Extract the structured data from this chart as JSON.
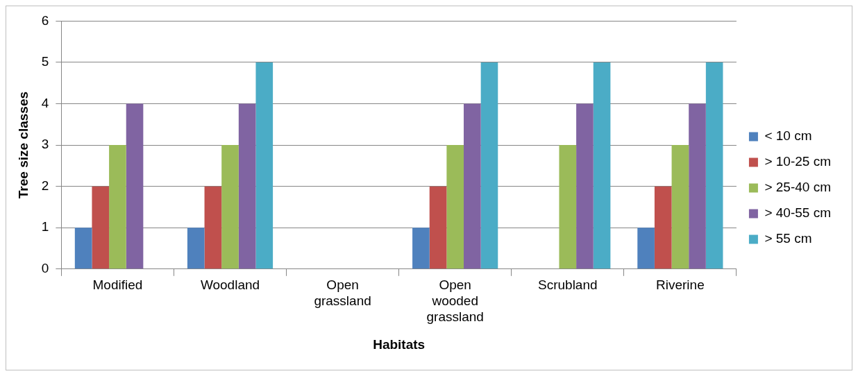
{
  "chart_data": {
    "type": "bar",
    "xlabel": "Habitats",
    "ylabel": "Tree size classes",
    "categories": [
      "Modified",
      "Woodland",
      "Open grassland",
      "Open wooded grassland",
      "Scrubland",
      "Riverine"
    ],
    "series": [
      {
        "name": "< 10 cm",
        "color": "#4f81bd",
        "values": [
          1,
          1,
          0,
          1,
          0,
          1
        ]
      },
      {
        "name": "> 10-25 cm",
        "color": "#c0504d",
        "values": [
          2,
          2,
          0,
          2,
          0,
          2
        ]
      },
      {
        "name": "> 25-40 cm",
        "color": "#9bbb59",
        "values": [
          3,
          3,
          0,
          3,
          3,
          3
        ]
      },
      {
        "name": "> 40-55 cm",
        "color": "#8064a2",
        "values": [
          4,
          4,
          0,
          4,
          4,
          4
        ]
      },
      {
        "name": "> 55 cm",
        "color": "#4bacc6",
        "values": [
          0,
          5,
          0,
          5,
          5,
          5
        ]
      }
    ],
    "ylim": [
      0,
      6
    ],
    "yticks": [
      0,
      1,
      2,
      3,
      4,
      5,
      6
    ],
    "grid": "y",
    "legend": "right"
  }
}
